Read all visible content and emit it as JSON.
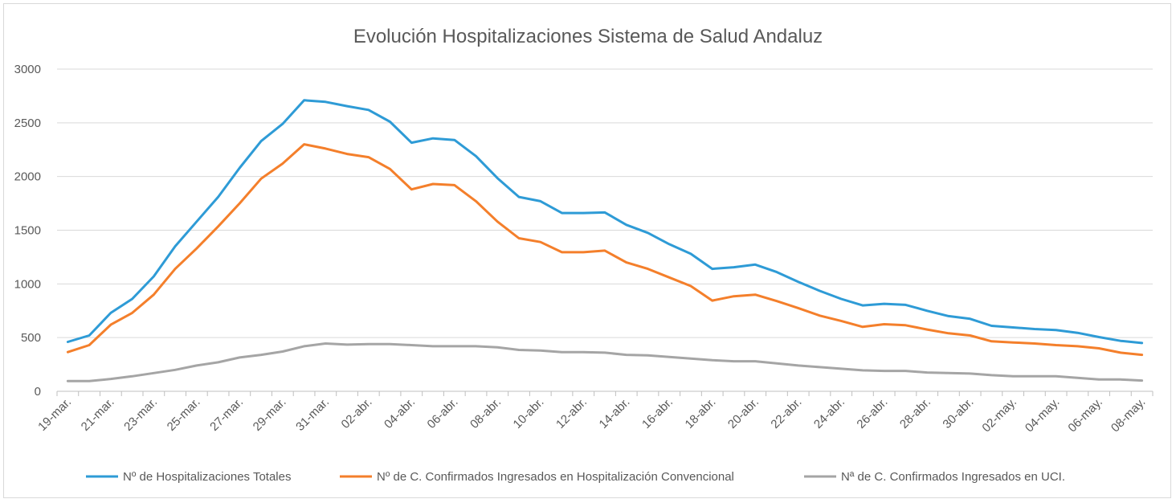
{
  "chart_data": {
    "type": "line",
    "title": "Evolución Hospitalizaciones Sistema de Salud Andaluz",
    "xlabel": "",
    "ylabel": "",
    "ylim": [
      0,
      3000
    ],
    "yticks": [
      0,
      500,
      1000,
      1500,
      2000,
      2500,
      3000
    ],
    "grid": true,
    "legend_position": "bottom",
    "categories": [
      "19-mar.",
      "20-mar.",
      "21-mar.",
      "22-mar.",
      "23-mar.",
      "24-mar.",
      "25-mar.",
      "26-mar.",
      "27-mar.",
      "28-mar.",
      "29-mar.",
      "30-mar.",
      "31-mar.",
      "01-abr.",
      "02-abr.",
      "03-abr.",
      "04-abr.",
      "05-abr.",
      "06-abr.",
      "07-abr.",
      "08-abr.",
      "09-abr.",
      "10-abr.",
      "11-abr.",
      "12-abr.",
      "13-abr.",
      "14-abr.",
      "15-abr.",
      "16-abr.",
      "17-abr.",
      "18-abr.",
      "19-abr.",
      "20-abr.",
      "21-abr.",
      "22-abr.",
      "23-abr.",
      "24-abr.",
      "25-abr.",
      "26-abr.",
      "27-abr.",
      "28-abr.",
      "29-abr.",
      "30-abr.",
      "01-may.",
      "02-may.",
      "03-may.",
      "04-may.",
      "05-may.",
      "06-may.",
      "07-may.",
      "08-may."
    ],
    "tick_labels": [
      "19-mar.",
      "21-mar.",
      "23-mar.",
      "25-mar.",
      "27-mar.",
      "29-mar.",
      "31-mar.",
      "02-abr.",
      "04-abr.",
      "06-abr.",
      "08-abr.",
      "10-abr.",
      "12-abr.",
      "14-abr.",
      "16-abr.",
      "18-abr.",
      "20-abr.",
      "22-abr.",
      "24-abr.",
      "26-abr.",
      "28-abr.",
      "30-abr.",
      "02-may.",
      "04-may.",
      "06-may.",
      "08-may."
    ],
    "series": [
      {
        "name": "Nº de Hospitalizaciones Totales",
        "color": "#2e9bd6",
        "values": [
          460,
          520,
          730,
          860,
          1070,
          1350,
          1580,
          1810,
          2080,
          2330,
          2490,
          2710,
          2695,
          2655,
          2620,
          2510,
          2315,
          2355,
          2340,
          2190,
          1985,
          1810,
          1770,
          1660,
          1660,
          1665,
          1550,
          1475,
          1370,
          1280,
          1140,
          1155,
          1180,
          1110,
          1020,
          935,
          860,
          800,
          815,
          805,
          750,
          700,
          675,
          610,
          595,
          580,
          570,
          545,
          505,
          470,
          450
        ]
      },
      {
        "name": "Nº de C. Confirmados Ingresados en Hospitalización Convencional",
        "color": "#f47f2b",
        "values": [
          365,
          430,
          620,
          730,
          900,
          1140,
          1330,
          1535,
          1750,
          1980,
          2120,
          2300,
          2260,
          2210,
          2180,
          2070,
          1880,
          1930,
          1920,
          1770,
          1580,
          1425,
          1390,
          1295,
          1295,
          1310,
          1200,
          1140,
          1060,
          980,
          845,
          885,
          900,
          840,
          775,
          705,
          655,
          600,
          625,
          615,
          575,
          540,
          520,
          465,
          455,
          445,
          430,
          420,
          400,
          360,
          340
        ]
      },
      {
        "name": "Nª de C. Confirmados Ingresados en UCI.",
        "color": "#a5a5a5",
        "values": [
          95,
          95,
          115,
          140,
          170,
          200,
          240,
          270,
          315,
          340,
          370,
          420,
          445,
          435,
          440,
          440,
          430,
          420,
          420,
          420,
          410,
          385,
          380,
          365,
          365,
          360,
          340,
          335,
          320,
          305,
          290,
          280,
          280,
          260,
          240,
          225,
          210,
          195,
          190,
          190,
          175,
          170,
          165,
          150,
          140,
          140,
          140,
          125,
          110,
          110,
          100
        ]
      }
    ]
  }
}
